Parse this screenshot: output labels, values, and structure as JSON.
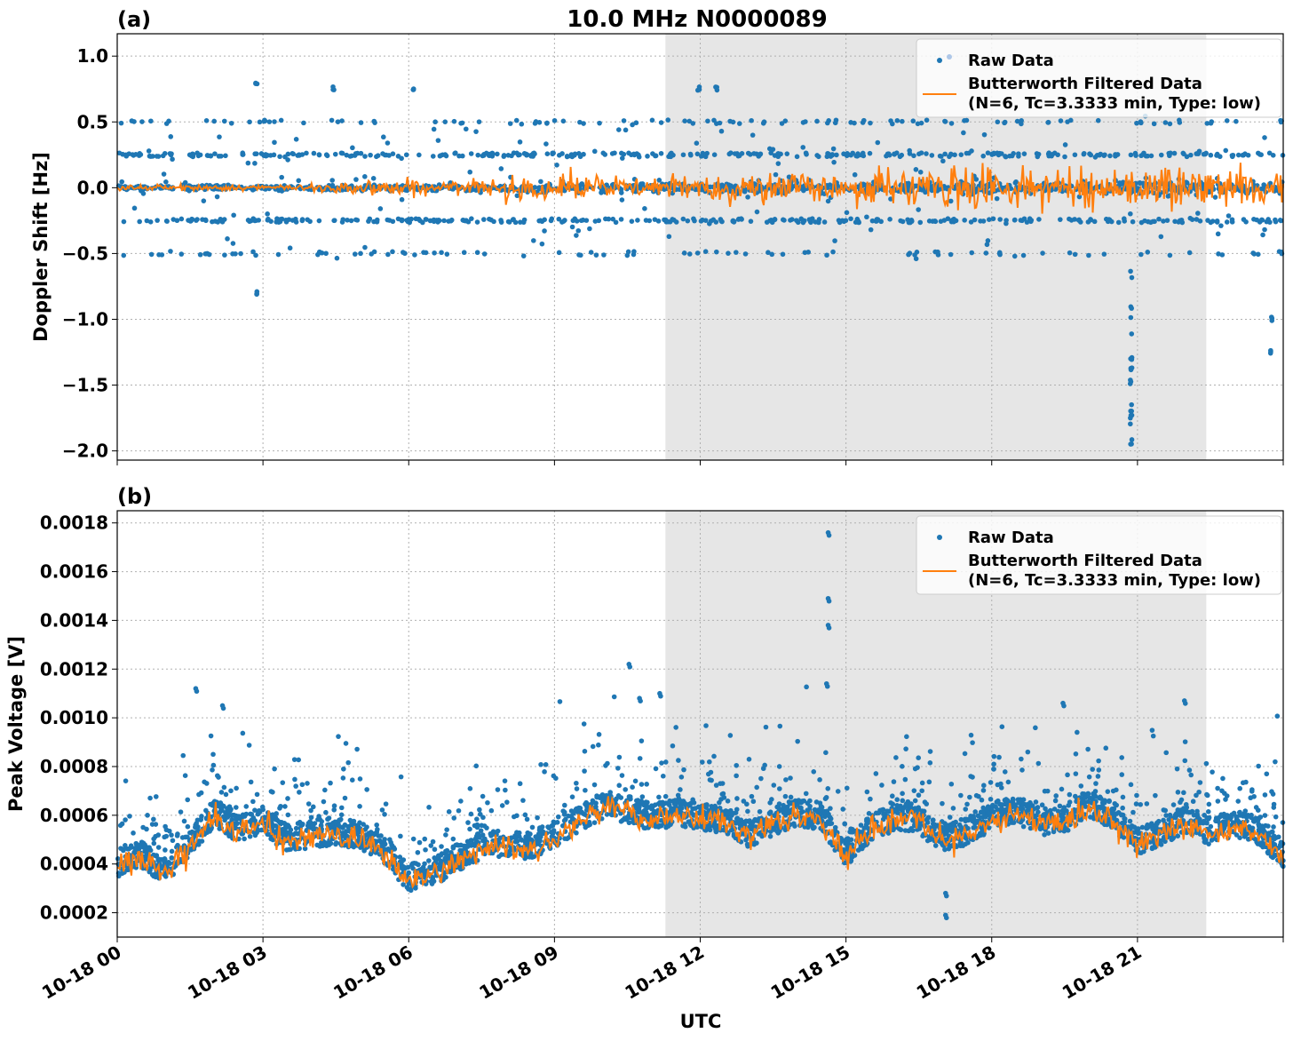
{
  "title": "10.0 MHz N0000089",
  "xlabel": "UTC",
  "x_ticks": [
    "10-18 00",
    "10-18 03",
    "10-18 06",
    "10-18 09",
    "10-18 12",
    "10-18 15",
    "10-18 18",
    "10-18 21"
  ],
  "colors": {
    "raw": "#1f77b4",
    "filtered": "#ff7f0e",
    "shade": "#e6e6e6",
    "grid": "#b0b0b0"
  },
  "chart_data": [
    {
      "type": "scatter",
      "panel_label": "(a)",
      "ylabel": "Doppler Shift [Hz]",
      "x_range": [
        "10-18 00:00",
        "10-19 00:00"
      ],
      "ylim": [
        -2.07,
        1.17
      ],
      "y_ticks": [
        "1.0",
        "0.5",
        "0.0",
        "−0.5",
        "−1.0",
        "−1.5",
        "−2.0"
      ],
      "y_tick_values": [
        1.0,
        0.5,
        0.0,
        -0.5,
        -1.0,
        -1.5,
        -2.0
      ],
      "shaded_region": [
        "10-18 11:17",
        "10-18 22:25"
      ],
      "grid": true,
      "legend_position": "top-right",
      "legend": [
        "Raw Data",
        "Butterworth Filtered Data",
        "(N=6, Tc=3.3333 min, Type: low)"
      ],
      "series": [
        {
          "name": "Raw Data",
          "kind": "scatter",
          "description_levels_hz": [
            0.5,
            0.25,
            0.0,
            -0.25,
            -0.5
          ],
          "notable_points": [
            {
              "x": "10-18 02:52",
              "y": 0.78
            },
            {
              "x": "10-18 02:52",
              "y": -0.79
            },
            {
              "x": "10-18 04:27",
              "y": 0.75
            },
            {
              "x": "10-18 06:05",
              "y": 0.74
            },
            {
              "x": "10-18 11:58",
              "y": 0.76
            },
            {
              "x": "10-18 12:20",
              "y": 0.76
            },
            {
              "x": "10-18 20:52",
              "y": -1.93
            },
            {
              "x": "10-18 20:52",
              "y": -1.74
            },
            {
              "x": "10-18 20:52",
              "y": -1.47
            },
            {
              "x": "10-18 20:52",
              "y": -1.3
            },
            {
              "x": "10-18 23:45",
              "y": -1.25
            },
            {
              "x": "10-18 23:45",
              "y": -1.0
            }
          ]
        },
        {
          "name": "Butterworth Filtered Data",
          "kind": "line",
          "baseline": 0.0,
          "amplitude_by_hour": [
            0.02,
            0.02,
            0.02,
            0.02,
            0.04,
            0.06,
            0.05,
            0.05,
            0.08,
            0.1,
            0.07,
            0.08,
            0.1,
            0.11,
            0.1,
            0.12,
            0.12,
            0.16,
            0.13,
            0.12,
            0.14,
            0.16,
            0.13,
            0.12
          ]
        }
      ]
    },
    {
      "type": "scatter",
      "panel_label": "(b)",
      "ylabel": "Peak Voltage [V]",
      "x_range": [
        "10-18 00:00",
        "10-19 00:00"
      ],
      "ylim": [
        0.0001,
        0.00185
      ],
      "y_ticks": [
        "0.0018",
        "0.0016",
        "0.0014",
        "0.0012",
        "0.0010",
        "0.0008",
        "0.0006",
        "0.0004",
        "0.0002"
      ],
      "y_tick_values": [
        0.0018,
        0.0016,
        0.0014,
        0.0012,
        0.001,
        0.0008,
        0.0006,
        0.0004,
        0.0002
      ],
      "shaded_region": [
        "10-18 11:17",
        "10-18 22:25"
      ],
      "grid": true,
      "legend_position": "top-right",
      "legend": [
        "Raw Data",
        "Butterworth Filtered Data",
        "(N=6, Tc=3.3333 min, Type: low)"
      ],
      "series": [
        {
          "name": "Butterworth Filtered Data",
          "kind": "line",
          "x_hours": [
            0,
            0.5,
            1,
            1.5,
            2,
            2.5,
            3,
            3.5,
            4,
            4.5,
            5,
            5.5,
            6,
            6.5,
            7,
            7.5,
            8,
            8.5,
            9,
            9.5,
            10,
            10.5,
            11,
            11.5,
            12,
            12.5,
            13,
            13.5,
            14,
            14.5,
            15,
            15.5,
            16,
            16.5,
            17,
            17.5,
            18,
            18.5,
            19,
            19.5,
            20,
            20.5,
            21,
            21.5,
            22,
            22.5,
            23,
            23.5,
            24
          ],
          "y": [
            0.00039,
            0.00042,
            0.00036,
            0.00048,
            0.00059,
            0.00053,
            0.00056,
            0.00049,
            0.00051,
            0.00052,
            0.0005,
            0.00044,
            0.00033,
            0.00035,
            0.00041,
            0.00046,
            0.00047,
            0.00046,
            0.00051,
            0.00057,
            0.00063,
            0.00061,
            0.00058,
            0.0006,
            0.00058,
            0.00057,
            0.00051,
            0.00056,
            0.0006,
            0.00058,
            0.00043,
            0.00053,
            0.00058,
            0.00057,
            0.00048,
            0.00052,
            0.00058,
            0.00061,
            0.00056,
            0.00057,
            0.00063,
            0.00058,
            0.00048,
            0.00052,
            0.00057,
            0.00052,
            0.00055,
            0.00052,
            0.00042
          ]
        },
        {
          "name": "Raw Data",
          "kind": "scatter",
          "band_low_offset": -7e-05,
          "band_high_offset": 0.00012,
          "outlier_points": [
            {
              "x": "10-18 01:37",
              "y": 0.00112
            },
            {
              "x": "10-18 02:10",
              "y": 0.00105
            },
            {
              "x": "10-18 10:32",
              "y": 0.00122
            },
            {
              "x": "10-18 10:45",
              "y": 0.00108
            },
            {
              "x": "10-18 11:10",
              "y": 0.0011
            },
            {
              "x": "10-18 14:38",
              "y": 0.00176
            },
            {
              "x": "10-18 14:38",
              "y": 0.00149
            },
            {
              "x": "10-18 14:38",
              "y": 0.00138
            },
            {
              "x": "10-18 14:36",
              "y": 0.00114
            },
            {
              "x": "10-18 17:03",
              "y": 0.00019
            },
            {
              "x": "10-18 17:03",
              "y": 0.00028
            },
            {
              "x": "10-18 19:28",
              "y": 0.00106
            },
            {
              "x": "10-18 21:58",
              "y": 0.00107
            }
          ]
        }
      ]
    }
  ]
}
